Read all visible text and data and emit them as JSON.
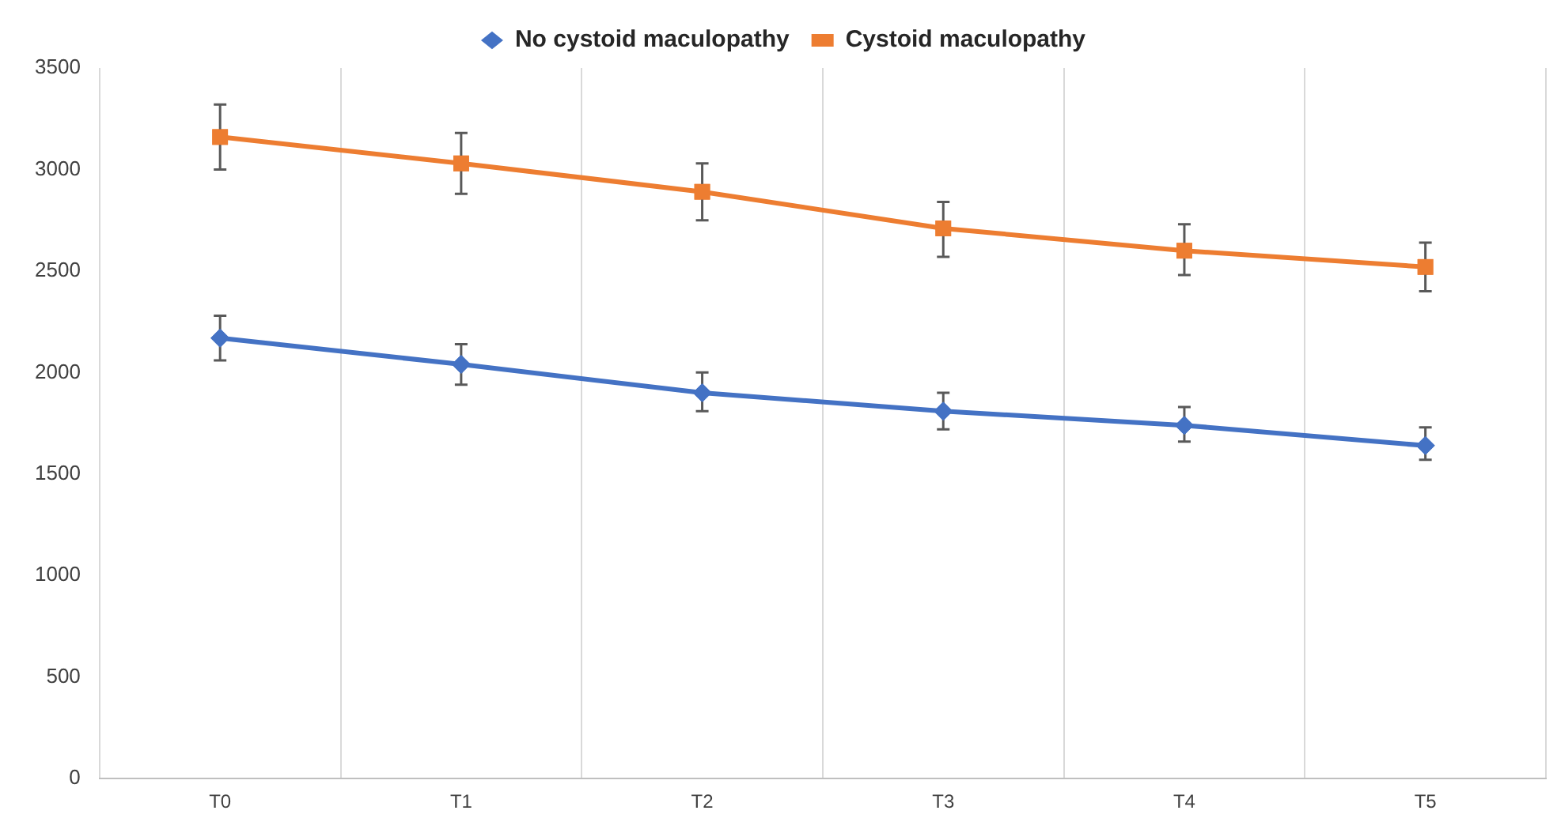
{
  "chart_data": {
    "type": "line",
    "categories": [
      "T0",
      "T1",
      "T2",
      "T3",
      "T4",
      "T5"
    ],
    "series": [
      {
        "name": "No cystoid maculopathy",
        "color": "#4472c4",
        "marker": "diamond",
        "values": [
          2170,
          2040,
          1900,
          1810,
          1740,
          1640
        ],
        "errors": [
          [
            2060,
            2280
          ],
          [
            1940,
            2140
          ],
          [
            1810,
            2000
          ],
          [
            1720,
            1900
          ],
          [
            1660,
            1830
          ],
          [
            1570,
            1730
          ]
        ]
      },
      {
        "name": "Cystoid maculopathy",
        "color": "#ed7d31",
        "marker": "square",
        "values": [
          3160,
          3030,
          2890,
          2710,
          2600,
          2520
        ],
        "errors": [
          [
            3000,
            3320
          ],
          [
            2880,
            3180
          ],
          [
            2750,
            3030
          ],
          [
            2570,
            2840
          ],
          [
            2480,
            2730
          ],
          [
            2400,
            2640
          ]
        ]
      }
    ],
    "ylim": [
      0,
      3500
    ],
    "yticks": [
      0,
      500,
      1000,
      1500,
      2000,
      2500,
      3000,
      3500
    ],
    "grid": "x",
    "legend": "top",
    "line_style": "solid"
  }
}
